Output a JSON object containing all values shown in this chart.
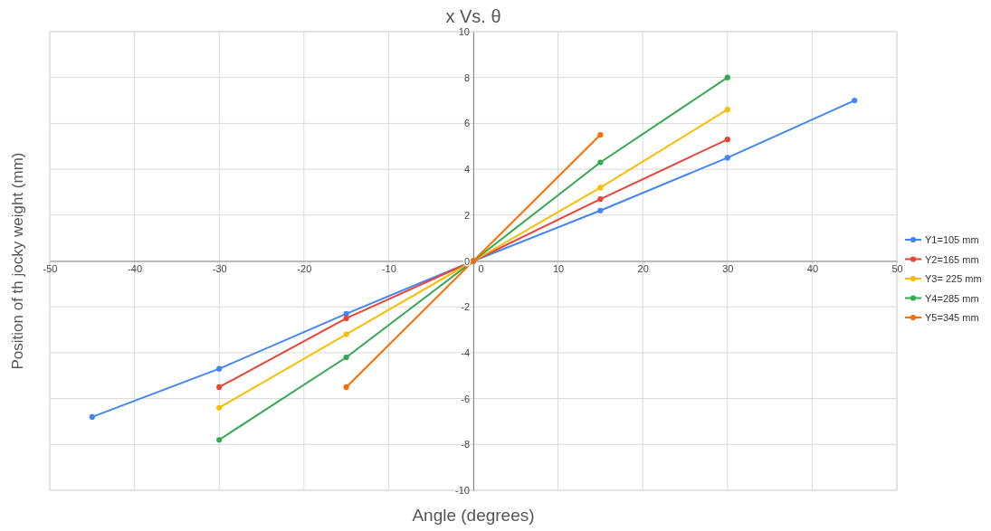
{
  "chart_data": {
    "type": "line",
    "title": "x Vs. θ",
    "xlabel": "Angle (degrees)",
    "ylabel": "Position of th jocky weight (mm)",
    "xlim": [
      -50,
      50
    ],
    "xticks": [
      -50,
      -40,
      -30,
      -20,
      -10,
      0,
      10,
      20,
      30,
      40,
      50
    ],
    "ylim": [
      -10,
      10
    ],
    "yticks": [
      -10,
      -8,
      -6,
      -4,
      -2,
      0,
      2,
      4,
      6,
      8,
      10
    ],
    "grid": true,
    "legend": "right",
    "marker": "circle",
    "line_style": "solid",
    "series": [
      {
        "name": "Y1=105 mm",
        "color": "#4285f4",
        "x": [
          -45,
          -30,
          -15,
          0,
          15,
          30,
          45
        ],
        "values": [
          -6.8,
          -4.7,
          -2.3,
          0,
          2.2,
          4.5,
          7.0
        ]
      },
      {
        "name": "Y2=165 mm",
        "color": "#ea4335",
        "x": [
          -30,
          -15,
          0,
          15,
          30
        ],
        "values": [
          -5.5,
          -2.5,
          0,
          2.7,
          5.3
        ]
      },
      {
        "name": "Y3= 225 mm",
        "color": "#fbbc04",
        "x": [
          -30,
          -15,
          0,
          15,
          30
        ],
        "values": [
          -6.4,
          -3.2,
          0,
          3.2,
          6.6
        ]
      },
      {
        "name": "Y4=285 mm",
        "color": "#34a853",
        "x": [
          -30,
          -15,
          0,
          15,
          30
        ],
        "values": [
          -7.8,
          -4.2,
          0,
          4.3,
          8.0
        ]
      },
      {
        "name": "Y5=345 mm",
        "color": "#ff6d01",
        "x": [
          -15,
          0,
          15
        ],
        "values": [
          -5.5,
          0,
          5.5
        ]
      }
    ]
  }
}
